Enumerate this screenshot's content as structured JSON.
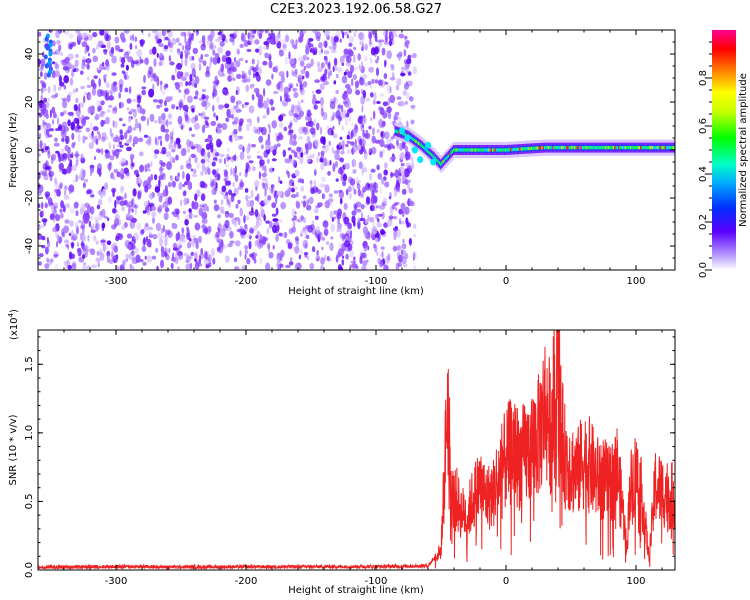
{
  "title": "C2E3.2023.192.06.58.G27",
  "chart_data": [
    {
      "type": "heatmap",
      "title": "C2E3.2023.192.06.58.G27",
      "xlabel": "Height of straight line (km)",
      "ylabel": "Frequency (Hz)",
      "xlim": [
        -360,
        130
      ],
      "ylim": [
        -50,
        50
      ],
      "x_ticks": [
        -300,
        -200,
        -100,
        0,
        100
      ],
      "y_ticks": [
        -40,
        -20,
        0,
        20,
        40
      ],
      "x_tick_labels": [
        "-300",
        "-200",
        "-100",
        "0",
        "100"
      ],
      "y_tick_labels": [
        "-40",
        "-20",
        "0",
        "20",
        "40"
      ],
      "noise_region_x": [
        -360,
        -70
      ],
      "signal_trace": {
        "x": [
          -85,
          -75,
          -65,
          -55,
          -50,
          -40,
          -30,
          -20,
          0,
          30,
          60,
          100,
          130
        ],
        "freq": [
          8,
          6,
          2,
          -3,
          -6,
          0,
          0,
          0,
          0,
          1,
          1,
          1,
          1
        ]
      },
      "colorbar": {
        "label": "Normalized spectral amplitude",
        "range": [
          0,
          1
        ],
        "ticks": [
          0.0,
          0.2,
          0.4,
          0.6,
          0.8
        ],
        "tick_labels": [
          "0.0",
          "0.2",
          "0.4",
          "0.6",
          "0.8"
        ]
      }
    },
    {
      "type": "line",
      "xlabel": "Height of straight line (km)",
      "ylabel": "SNR (10 * v/v)",
      "scale_label": "(x10",
      "scale_exponent": "4",
      "xlim": [
        -360,
        130
      ],
      "ylim": [
        0,
        17500
      ],
      "x_ticks": [
        -300,
        -200,
        -100,
        0,
        100
      ],
      "y_ticks": [
        0,
        5000,
        10000,
        15000
      ],
      "x_tick_labels": [
        "-300",
        "-200",
        "-100",
        "0",
        "100"
      ],
      "y_tick_labels": [
        "0.0",
        "0.5",
        "1.0",
        "1.5"
      ],
      "color": "#ee2222",
      "series": [
        {
          "x": [
            -360,
            -300,
            -250,
            -200,
            -150,
            -100,
            -60,
            -50,
            -47,
            -45,
            -44,
            -42,
            -40,
            -38,
            -35,
            -30,
            -25,
            -20,
            -15,
            -10,
            -5,
            0,
            5,
            10,
            15,
            20,
            25,
            30,
            35,
            38,
            40,
            42,
            45,
            50,
            55,
            60,
            65,
            70,
            75,
            80,
            85,
            90,
            93,
            95,
            98,
            100,
            105,
            110,
            115,
            120,
            125,
            130
          ],
          "y": [
            200,
            250,
            220,
            230,
            240,
            250,
            300,
            1500,
            8000,
            13500,
            11000,
            6000,
            5200,
            5400,
            4500,
            4200,
            5500,
            6500,
            5500,
            5800,
            7500,
            8400,
            9300,
            8500,
            8800,
            9600,
            10200,
            12500,
            10500,
            14500,
            16800,
            11000,
            8800,
            7900,
            7400,
            8500,
            7900,
            7000,
            7000,
            6400,
            8000,
            4500,
            1600,
            6000,
            7000,
            7500,
            5400,
            900,
            6500,
            6000,
            5800,
            5500
          ]
        }
      ]
    }
  ]
}
